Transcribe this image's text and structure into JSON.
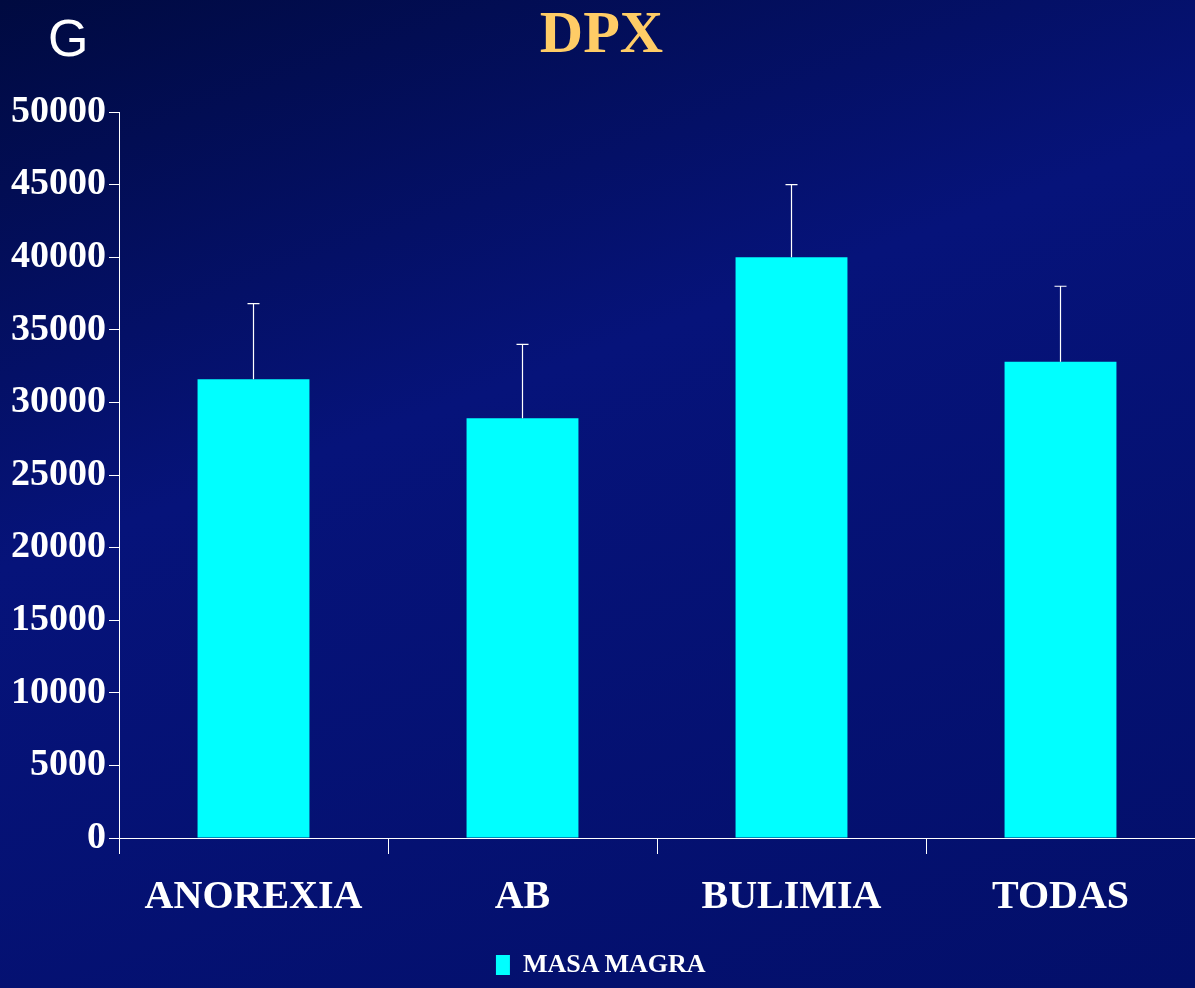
{
  "chart_data": {
    "type": "bar",
    "title": "DPX",
    "annotations": [
      "G"
    ],
    "categories": [
      "ANOREXIA",
      "AB",
      "BULIMIA",
      "TODAS"
    ],
    "series": [
      {
        "name": "MASA MAGRA",
        "color": "#00ffff",
        "values": [
          31600,
          28900,
          40000,
          32800
        ],
        "errors": [
          [
            31600,
            36800
          ],
          [
            28900,
            34000
          ],
          [
            40000,
            45000
          ],
          [
            32800,
            38000
          ]
        ]
      }
    ],
    "ylim": [
      0,
      50000
    ],
    "yticks": [
      0,
      5000,
      10000,
      15000,
      20000,
      25000,
      30000,
      35000,
      40000,
      45000,
      50000
    ],
    "grid": false,
    "legend": "bottom"
  }
}
